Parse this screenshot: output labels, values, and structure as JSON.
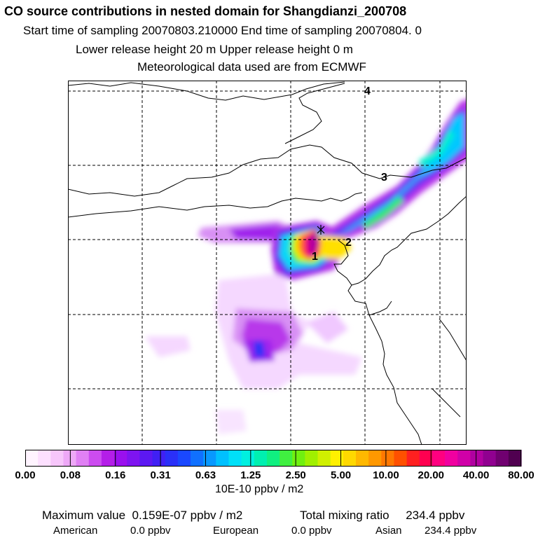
{
  "header": {
    "title": "CO  source contributions in nested domain for Shangdianzi_200708",
    "sampling_line": "Start time of sampling 20070803.210000     End time of sampling 20070804.     0",
    "release_line": "Lower release height   20 m          Upper release height    0 m",
    "met_line": "Meteorological data used are from ECMWF"
  },
  "map": {
    "path_labels": [
      "1",
      "2",
      "3",
      "4"
    ],
    "receptor_symbol": "*"
  },
  "colorbar": {
    "tick_labels": [
      "0.00",
      "0.08",
      "0.16",
      "0.31",
      "0.63",
      "1.25",
      "2.50",
      "5.00",
      "10.00",
      "20.00",
      "40.00",
      "80.00"
    ],
    "units": "10E-10 ppbv / m2",
    "colors": [
      "#fff4ff",
      "#fde0ff",
      "#f7c6fb",
      "#eea8f7",
      "#e080f4",
      "#cc4cf0",
      "#b41ee8",
      "#9a10ee",
      "#7e14f0",
      "#5c18f2",
      "#4020f4",
      "#2a30f8",
      "#1a48ff",
      "#1070ff",
      "#0898ff",
      "#00c0ff",
      "#00e0f8",
      "#00f0e0",
      "#00f0b0",
      "#10f080",
      "#40f040",
      "#70f010",
      "#a0f000",
      "#d0f000",
      "#fff000",
      "#ffd800",
      "#ffb800",
      "#ff9800",
      "#ff7800",
      "#ff5000",
      "#ff2020",
      "#ff0050",
      "#ff0080",
      "#f000a0",
      "#d000a8",
      "#b000a0",
      "#900090",
      "#700070",
      "#500050"
    ]
  },
  "summary": {
    "max_label": "Maximum value",
    "max_value": "0.159E-07 ppbv / m2",
    "mix_label": "Total mixing ratio",
    "mix_value": "234.4 ppbv",
    "regions": [
      {
        "name": "American",
        "value": "0.0 ppbv"
      },
      {
        "name": "European",
        "value": "0.0 ppbv"
      },
      {
        "name": "Asian",
        "value": "234.4 ppbv"
      }
    ]
  }
}
